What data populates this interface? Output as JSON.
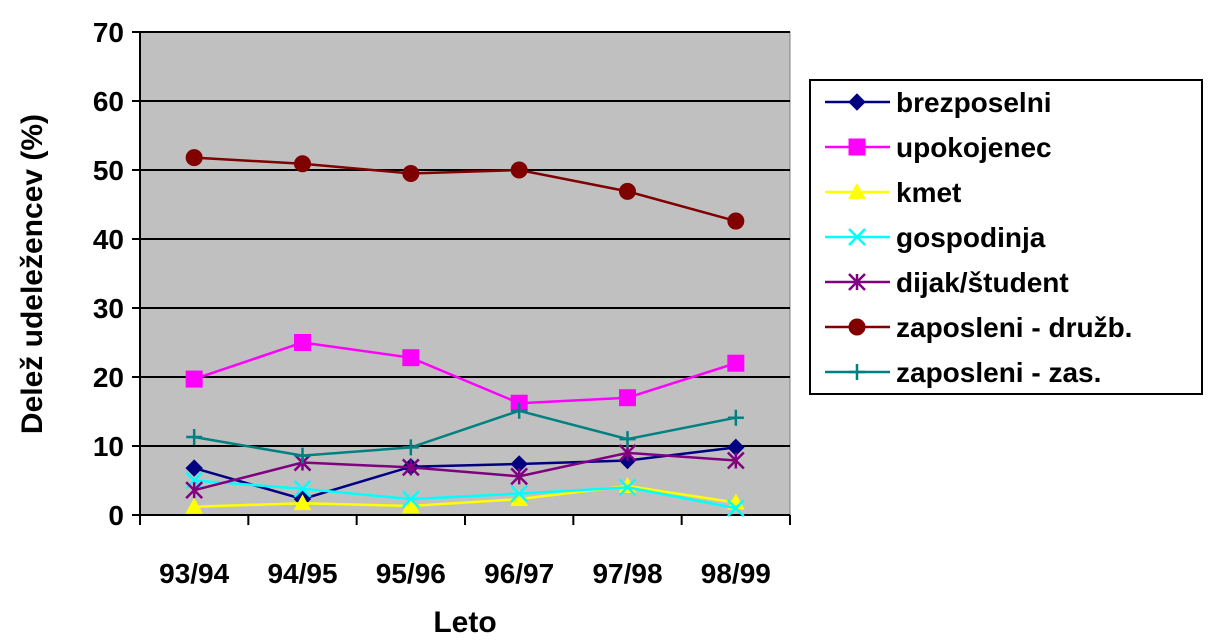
{
  "chart_data": {
    "type": "line",
    "title": "",
    "xlabel": "Leto",
    "ylabel": "Delež udeležencev (%)",
    "ylim": [
      0,
      70
    ],
    "yticks": [
      0,
      10,
      20,
      30,
      40,
      50,
      60,
      70
    ],
    "grid": true,
    "legend_position": "right",
    "plot_background": "#c0c0c0",
    "categories": [
      "93/94",
      "94/95",
      "95/96",
      "96/97",
      "97/98",
      "98/99"
    ],
    "series": [
      {
        "name": "brezposelni",
        "color": "#000080",
        "marker": "diamond",
        "values": [
          6.8,
          2.3,
          7.0,
          7.4,
          7.9,
          9.8
        ]
      },
      {
        "name": "upokojenec",
        "color": "#ff00ff",
        "marker": "square",
        "values": [
          19.7,
          25.0,
          22.8,
          16.2,
          17.0,
          22.0
        ]
      },
      {
        "name": "kmet",
        "color": "#ffff00",
        "marker": "triangle",
        "values": [
          1.2,
          1.7,
          1.3,
          2.3,
          4.2,
          1.8
        ]
      },
      {
        "name": "gospodinja",
        "color": "#00ffff",
        "marker": "x",
        "values": [
          5.0,
          3.8,
          2.3,
          3.1,
          4.0,
          1.0
        ]
      },
      {
        "name": "dijak/študent",
        "color": "#800080",
        "marker": "star",
        "values": [
          3.6,
          7.6,
          6.9,
          5.6,
          9.0,
          7.9
        ]
      },
      {
        "name": "zaposleni - družb.",
        "color": "#800000",
        "marker": "circle",
        "values": [
          51.8,
          50.9,
          49.5,
          50.0,
          46.9,
          42.6
        ]
      },
      {
        "name": "zaposleni - zas.",
        "color": "#008080",
        "marker": "plus",
        "values": [
          11.3,
          8.6,
          9.8,
          15.1,
          11.0,
          14.1
        ]
      }
    ]
  }
}
